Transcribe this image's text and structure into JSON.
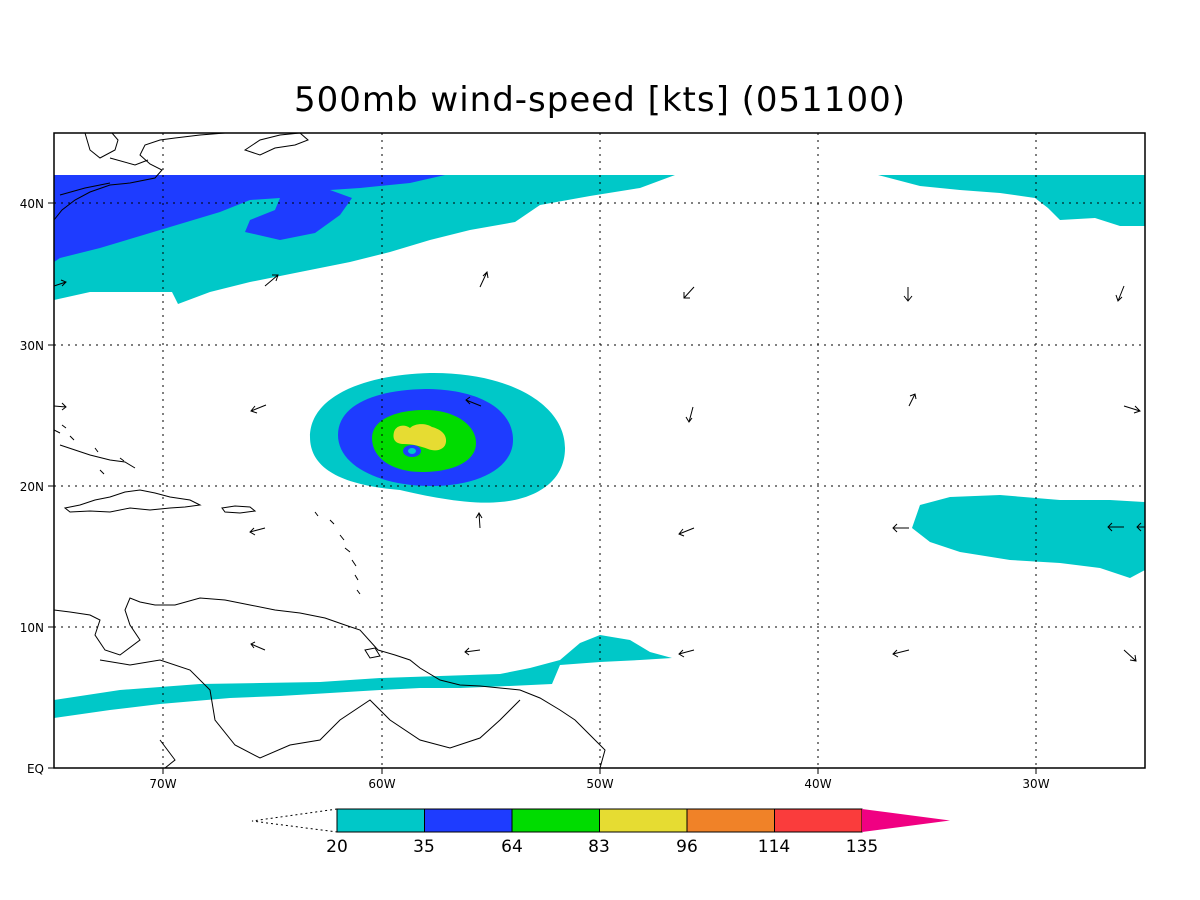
{
  "title": "500mb wind-speed [kts] (051100)",
  "latitude_labels": [
    "40N",
    "30N",
    "20N",
    "10N",
    "EQ"
  ],
  "longitude_labels": [
    "70W",
    "60W",
    "50W",
    "40W",
    "30W"
  ],
  "colorbar": {
    "levels": [
      "20",
      "35",
      "64",
      "83",
      "96",
      "114",
      "135"
    ],
    "colors": [
      "#00c8c8",
      "#1e3cff",
      "#00dc00",
      "#e6dc32",
      "#f08228",
      "#fa3c3c",
      "#f00082"
    ]
  },
  "colors": {
    "ws_20_35": "#00c8c8",
    "ws_35_64": "#1e3cff",
    "ws_64_83": "#00dc00",
    "ws_83_96": "#e6dc32",
    "coastline": "#000000",
    "grid": "#000000"
  },
  "map_extent": {
    "lon_min": -75,
    "lon_max": -25,
    "lat_min": 0,
    "lat_max": 45
  }
}
